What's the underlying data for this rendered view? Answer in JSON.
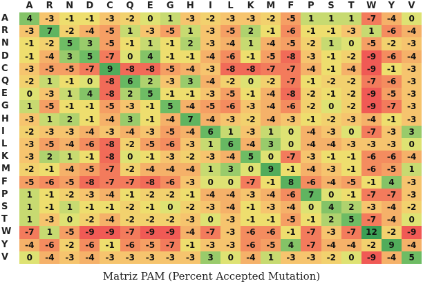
{
  "labels": [
    "A",
    "R",
    "N",
    "D",
    "C",
    "Q",
    "E",
    "G",
    "H",
    "I",
    "L",
    "K",
    "M",
    "F",
    "P",
    "S",
    "T",
    "W",
    "Y",
    "V"
  ],
  "matrix": [
    [
      4,
      -3,
      -1,
      -1,
      -3,
      -2,
      0,
      1,
      -3,
      -2,
      -3,
      -3,
      -2,
      -5,
      1,
      1,
      1,
      -7,
      -4,
      0
    ],
    [
      -3,
      7,
      -2,
      -4,
      -5,
      1,
      -3,
      -5,
      1,
      -3,
      -5,
      2,
      -1,
      -6,
      -1,
      -1,
      -3,
      1,
      -6,
      -4
    ],
    [
      -1,
      -2,
      5,
      3,
      -5,
      -1,
      1,
      -1,
      2,
      -3,
      -4,
      1,
      -4,
      -5,
      -2,
      1,
      0,
      -5,
      -2,
      -3
    ],
    [
      -1,
      -4,
      3,
      5,
      -7,
      0,
      4,
      -1,
      -1,
      -4,
      -6,
      -1,
      -5,
      -8,
      -3,
      -1,
      -2,
      -9,
      -6,
      -4
    ],
    [
      -3,
      -5,
      -5,
      -7,
      9,
      -8,
      -8,
      -5,
      -4,
      -3,
      -8,
      -8,
      -7,
      -7,
      -4,
      -1,
      -4,
      -9,
      -1,
      -3
    ],
    [
      -2,
      1,
      -1,
      0,
      -8,
      6,
      2,
      -3,
      3,
      -4,
      -2,
      0,
      -2,
      -7,
      -1,
      -2,
      -2,
      -7,
      -6,
      -3
    ],
    [
      0,
      -3,
      1,
      4,
      -8,
      2,
      5,
      -1,
      -1,
      -3,
      -5,
      -1,
      -4,
      -8,
      -2,
      -1,
      -2,
      -9,
      -5,
      -3
    ],
    [
      1,
      -5,
      -1,
      -1,
      -5,
      -3,
      -1,
      5,
      -4,
      -5,
      -6,
      -3,
      -4,
      -6,
      -2,
      0,
      -2,
      -9,
      -7,
      -3
    ],
    [
      -3,
      1,
      2,
      -1,
      -4,
      3,
      -1,
      -4,
      7,
      -4,
      -3,
      -2,
      -4,
      -3,
      -1,
      -2,
      -3,
      -4,
      -1,
      -3
    ],
    [
      -2,
      -3,
      -3,
      -4,
      -3,
      -4,
      -3,
      -5,
      -4,
      6,
      1,
      -3,
      1,
      0,
      -4,
      -3,
      0,
      -7,
      -3,
      3
    ],
    [
      -3,
      -5,
      -4,
      -6,
      -8,
      -2,
      -5,
      -6,
      -3,
      1,
      6,
      -4,
      3,
      0,
      -4,
      -4,
      -3,
      -3,
      -3,
      0
    ],
    [
      -3,
      2,
      1,
      -1,
      -8,
      0,
      -1,
      -3,
      -2,
      -3,
      -4,
      5,
      0,
      -7,
      -3,
      -1,
      -1,
      -6,
      -6,
      -4
    ],
    [
      -2,
      -1,
      -4,
      -5,
      -7,
      -2,
      -4,
      -4,
      -4,
      1,
      3,
      0,
      9,
      -1,
      -4,
      -3,
      -1,
      -6,
      -5,
      1
    ],
    [
      -5,
      -6,
      -5,
      -8,
      -7,
      -7,
      -8,
      -6,
      -3,
      0,
      0,
      -7,
      -1,
      8,
      -6,
      -4,
      -5,
      -1,
      4,
      -3
    ],
    [
      1,
      -1,
      -2,
      -3,
      -4,
      -1,
      -2,
      -2,
      -1,
      -4,
      -4,
      -3,
      -4,
      -6,
      7,
      0,
      -1,
      -7,
      -7,
      -3
    ],
    [
      1,
      -1,
      1,
      -1,
      -1,
      -2,
      -1,
      0,
      -2,
      -3,
      -4,
      -1,
      -3,
      -4,
      0,
      4,
      2,
      -3,
      -4,
      -2
    ],
    [
      1,
      -3,
      0,
      -2,
      -4,
      -2,
      -2,
      -2,
      -3,
      0,
      -3,
      -1,
      -1,
      -5,
      -1,
      2,
      5,
      -7,
      -4,
      0
    ],
    [
      -7,
      1,
      -5,
      -9,
      -9,
      -7,
      -9,
      -9,
      -4,
      -7,
      -3,
      -6,
      -6,
      -1,
      -7,
      -3,
      -7,
      12,
      -2,
      -9
    ],
    [
      -4,
      -6,
      -2,
      -6,
      -1,
      -6,
      -5,
      -7,
      -1,
      -3,
      -3,
      -6,
      -5,
      4,
      -7,
      -4,
      -4,
      -2,
      9,
      -4
    ],
    [
      0,
      -4,
      -3,
      -4,
      -3,
      -3,
      -3,
      -3,
      -3,
      3,
      0,
      -4,
      1,
      -3,
      -3,
      -2,
      0,
      -9,
      -4,
      5
    ]
  ],
  "caption": "Matriz PAM (Percent Accepted Mutation)"
}
